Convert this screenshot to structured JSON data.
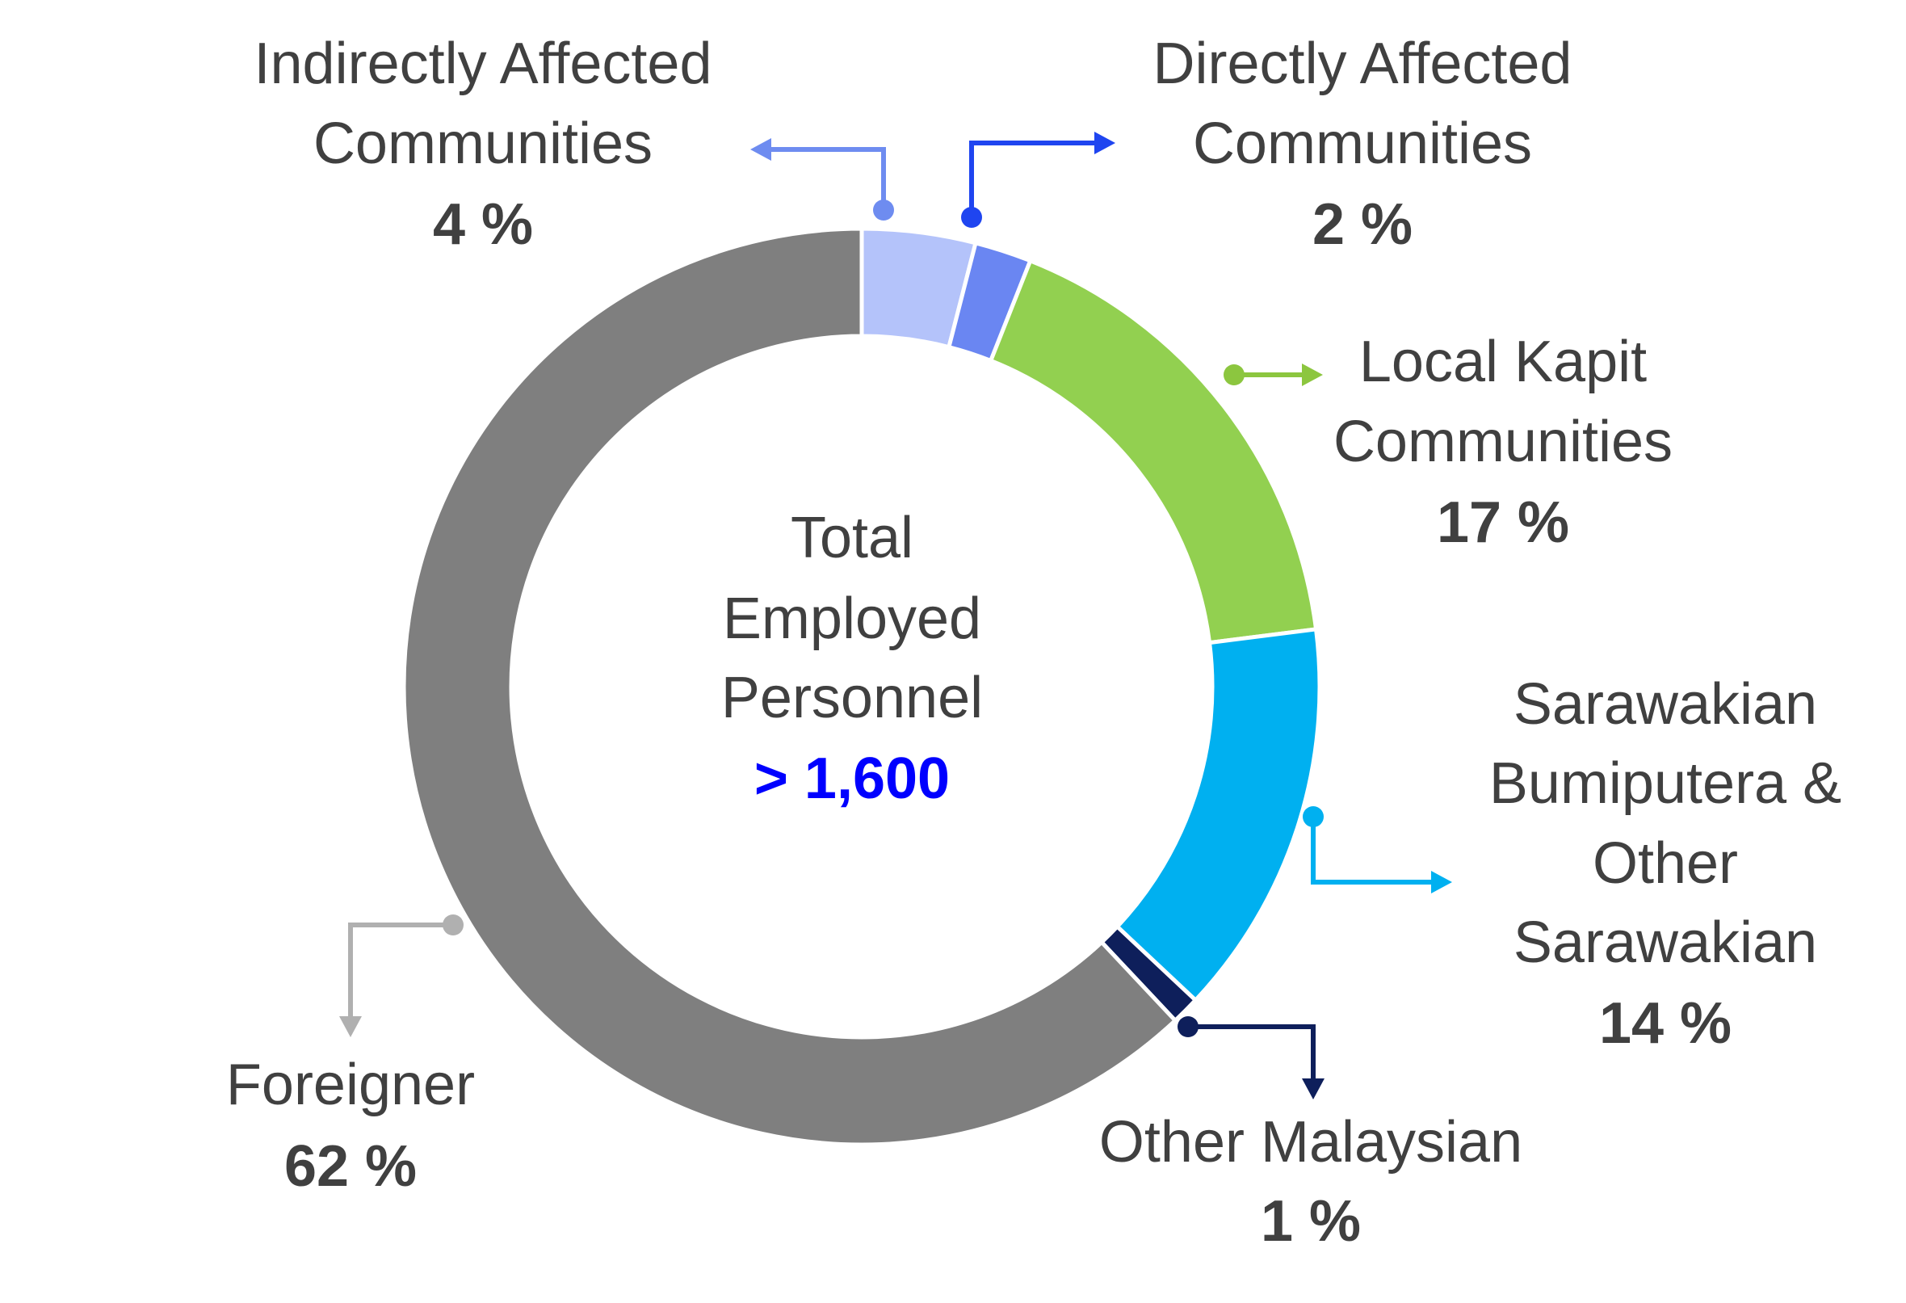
{
  "chart_data": {
    "type": "pie",
    "variant": "donut",
    "center_label": [
      "Total",
      "Employed",
      "Personnel"
    ],
    "center_value": "> 1,600",
    "segments": [
      {
        "key": "indirect",
        "label": [
          "Indirectly Affected",
          "Communities"
        ],
        "value": 4,
        "value_label": "4 %",
        "color": "#b4c3fa",
        "arrow_color": "#6e8cf0"
      },
      {
        "key": "direct",
        "label": [
          "Directly Affected",
          "Communities"
        ],
        "value": 2,
        "value_label": "2 %",
        "color": "#6a86f2",
        "arrow_color": "#1f45f0"
      },
      {
        "key": "kapit",
        "label": [
          "Local Kapit",
          "Communities"
        ],
        "value": 17,
        "value_label": "17 %",
        "color": "#92d050",
        "arrow_color": "#8cc63f"
      },
      {
        "key": "sarawakian",
        "label": [
          "Sarawakian",
          "Bumiputera &",
          "Other",
          "Sarawakian"
        ],
        "value": 14,
        "value_label": "14 %",
        "color": "#00b0f0",
        "arrow_color": "#00b0f0"
      },
      {
        "key": "malaysian",
        "label": [
          "Other Malaysian"
        ],
        "value": 1,
        "value_label": "1 %",
        "color": "#0e1f5b",
        "arrow_color": "#0e1f5b"
      },
      {
        "key": "foreigner",
        "label": [
          "Foreigner"
        ],
        "value": 62,
        "value_label": "62 %",
        "color": "#7f7f7f",
        "arrow_color": "#b0b0b0"
      }
    ]
  }
}
